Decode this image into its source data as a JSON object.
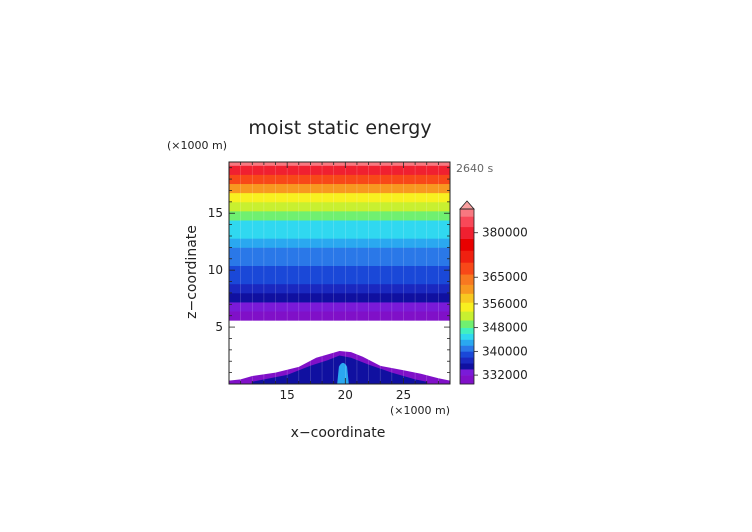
{
  "chart_data": {
    "type": "heatmap",
    "title": "moist static energy",
    "time_label": "2640 s",
    "xlabel": "x−coordinate",
    "ylabel": "z−coordinate",
    "x_unit_label": "(×1000 m)",
    "y_unit_label": "(×1000 m)",
    "xlim": [
      10,
      29
    ],
    "ylim": [
      0,
      19.5
    ],
    "x_ticks": [
      {
        "value": 15,
        "label": "15"
      },
      {
        "value": 20,
        "label": "20"
      },
      {
        "value": 25,
        "label": "25"
      }
    ],
    "y_ticks": [
      {
        "value": 5,
        "label": "5"
      },
      {
        "value": 10,
        "label": "10"
      },
      {
        "value": 15,
        "label": "15"
      }
    ],
    "missing_band_z": [
      2.8,
      5.6
    ],
    "colorbar": {
      "min": 329000,
      "max": 388000,
      "ticks": [
        {
          "value": 332000,
          "label": "332000"
        },
        {
          "value": 340000,
          "label": "340000"
        },
        {
          "value": 348000,
          "label": "348000"
        },
        {
          "value": 356000,
          "label": "356000"
        },
        {
          "value": 365000,
          "label": "365000"
        },
        {
          "value": 380000,
          "label": "380000"
        }
      ],
      "over_color": "#f9a0a0",
      "levels": [
        {
          "value": 331000,
          "color": "#8010c8"
        },
        {
          "value": 333000,
          "color": "#7a1ad8"
        },
        {
          "value": 335000,
          "color": "#1010a0"
        },
        {
          "value": 337000,
          "color": "#1a28c0"
        },
        {
          "value": 339000,
          "color": "#1a48d8"
        },
        {
          "value": 341000,
          "color": "#2a78e8"
        },
        {
          "value": 343000,
          "color": "#2aa8f0"
        },
        {
          "value": 345000,
          "color": "#30d8f0"
        },
        {
          "value": 347000,
          "color": "#40f0c0"
        },
        {
          "value": 349000,
          "color": "#70f070"
        },
        {
          "value": 352000,
          "color": "#c8f030"
        },
        {
          "value": 355000,
          "color": "#f8f020"
        },
        {
          "value": 358000,
          "color": "#f8c820"
        },
        {
          "value": 361000,
          "color": "#f89820"
        },
        {
          "value": 364000,
          "color": "#f87820"
        },
        {
          "value": 368000,
          "color": "#f84818"
        },
        {
          "value": 372000,
          "color": "#f02010"
        },
        {
          "value": 376000,
          "color": "#e80000"
        },
        {
          "value": 380000,
          "color": "#f02030"
        },
        {
          "value": 384000,
          "color": "#f84858"
        },
        {
          "value": 387000,
          "color": "#f87880"
        }
      ]
    },
    "upper_field": [
      {
        "z": 5.6,
        "value": 331000
      },
      {
        "z": 6.4,
        "value": 333000
      },
      {
        "z": 7.2,
        "value": 335000
      },
      {
        "z": 8.0,
        "value": 337000
      },
      {
        "z": 8.8,
        "value": 339000
      },
      {
        "z": 9.6,
        "value": 340000
      },
      {
        "z": 10.4,
        "value": 341000
      },
      {
        "z": 11.2,
        "value": 342000
      },
      {
        "z": 12.0,
        "value": 343000
      },
      {
        "z": 12.8,
        "value": 345000
      },
      {
        "z": 13.6,
        "value": 346000
      },
      {
        "z": 14.4,
        "value": 349000
      },
      {
        "z": 15.2,
        "value": 352000
      },
      {
        "z": 16.0,
        "value": 356000
      },
      {
        "z": 16.8,
        "value": 362000
      },
      {
        "z": 17.6,
        "value": 370000
      },
      {
        "z": 18.4,
        "value": 380000
      },
      {
        "z": 19.2,
        "value": 387000
      },
      {
        "z": 19.5,
        "value": 388000
      }
    ],
    "lower_field": {
      "outer_envelope": [
        [
          10,
          0.3
        ],
        [
          11,
          0.4
        ],
        [
          12,
          0.7
        ],
        [
          14,
          1.0
        ],
        [
          16,
          1.5
        ],
        [
          17.5,
          2.3
        ],
        [
          18.5,
          2.6
        ],
        [
          19.5,
          2.9
        ],
        [
          20.5,
          2.8
        ],
        [
          21.5,
          2.4
        ],
        [
          23,
          1.6
        ],
        [
          25,
          1.2
        ],
        [
          26.5,
          0.9
        ],
        [
          28,
          0.5
        ],
        [
          29,
          0.3
        ]
      ],
      "outer_value": 331000,
      "mid_envelope": [
        [
          12,
          0.2
        ],
        [
          15,
          0.8
        ],
        [
          17,
          1.6
        ],
        [
          18.5,
          2.1
        ],
        [
          19.5,
          2.5
        ],
        [
          20.5,
          2.3
        ],
        [
          22,
          1.7
        ],
        [
          24,
          1.0
        ],
        [
          26,
          0.4
        ],
        [
          27,
          0.2
        ]
      ],
      "mid_value": 336000,
      "plume": {
        "x_center": 19.8,
        "half_width": 0.5,
        "top": 1.9,
        "value": 343000
      }
    }
  }
}
